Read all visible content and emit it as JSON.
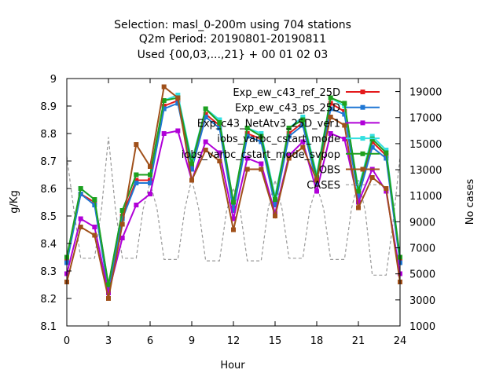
{
  "chart_data": {
    "type": "line",
    "title_lines": [
      "Selection: masl_0-200m using   704 stations",
      "Q2m   Period: 20190801-20190811",
      "Used {00,03,...,21} + 00 01 02 03"
    ],
    "xlabel": "Hour",
    "ylabel": "g/Kg",
    "y2label": "No cases",
    "xlim": [
      0,
      24
    ],
    "ylim": [
      8.1,
      9.0
    ],
    "y2lim": [
      1000,
      20000
    ],
    "xticks": [
      "0",
      "3",
      "6",
      "9",
      "12",
      "15",
      "18",
      "21",
      "24"
    ],
    "yticks": [
      "8.1",
      "8.2",
      "8.3",
      "8.4",
      "8.5",
      "8.6",
      "8.7",
      "8.8",
      "8.9",
      "9"
    ],
    "y2ticks": [
      "1000",
      "3000",
      "5000",
      "7000",
      "9000",
      "11000",
      "13000",
      "15000",
      "17000",
      "19000"
    ],
    "grid": false,
    "legend_position": "top-right",
    "x": [
      0,
      1,
      2,
      3,
      4,
      5,
      6,
      7,
      8,
      9,
      10,
      11,
      12,
      13,
      14,
      15,
      16,
      17,
      18,
      19,
      20,
      21,
      22,
      23,
      24
    ],
    "series": [
      {
        "name": "Exp_ew_c43_ref_25D",
        "color": "#e41a1c",
        "marker": "square",
        "values": [
          8.34,
          8.58,
          8.55,
          8.23,
          8.5,
          8.63,
          8.63,
          8.9,
          8.92,
          8.68,
          8.87,
          8.83,
          8.53,
          8.8,
          8.78,
          8.55,
          8.8,
          8.84,
          8.63,
          8.91,
          8.88,
          8.58,
          8.77,
          8.72,
          8.34
        ]
      },
      {
        "name": "Exp_ew_c43_ps_25D",
        "color": "#1f77d4",
        "marker": "square",
        "values": [
          8.33,
          8.58,
          8.54,
          8.23,
          8.49,
          8.62,
          8.62,
          8.89,
          8.91,
          8.67,
          8.86,
          8.82,
          8.52,
          8.79,
          8.77,
          8.54,
          8.79,
          8.83,
          8.62,
          8.89,
          8.87,
          8.57,
          8.75,
          8.71,
          8.33
        ]
      },
      {
        "name": "Exp_c43_NetAtv3_25D_ver1",
        "color": "#b000d8",
        "marker": "square",
        "values": [
          8.29,
          8.49,
          8.46,
          8.22,
          8.42,
          8.54,
          8.58,
          8.8,
          8.81,
          8.63,
          8.77,
          8.73,
          8.49,
          8.71,
          8.69,
          8.51,
          8.72,
          8.77,
          8.59,
          8.8,
          8.78,
          8.55,
          8.67,
          8.59,
          8.29
        ]
      },
      {
        "name": "iobs_varbc_cstart_mode",
        "color": "#33e0e0",
        "marker": "square",
        "values": [
          8.35,
          8.6,
          8.56,
          8.25,
          8.52,
          8.65,
          8.65,
          8.92,
          8.94,
          8.7,
          8.89,
          8.85,
          8.55,
          8.82,
          8.8,
          8.57,
          8.82,
          8.86,
          8.65,
          8.93,
          8.9,
          8.6,
          8.79,
          8.74,
          8.35
        ]
      },
      {
        "name": "iobs_varbc_cstart_mode_svpop",
        "color": "#1ea01e",
        "marker": "square",
        "values": [
          8.35,
          8.6,
          8.56,
          8.25,
          8.52,
          8.65,
          8.65,
          8.92,
          8.93,
          8.69,
          8.89,
          8.84,
          8.55,
          8.82,
          8.79,
          8.56,
          8.82,
          8.85,
          8.64,
          8.93,
          8.91,
          8.59,
          8.78,
          8.73,
          8.35
        ]
      },
      {
        "name": "OBS",
        "color": "#a0501a",
        "marker": "square",
        "values": [
          8.26,
          8.46,
          8.43,
          8.2,
          8.47,
          8.76,
          8.68,
          8.97,
          8.93,
          8.63,
          8.74,
          8.7,
          8.45,
          8.67,
          8.67,
          8.5,
          8.71,
          8.75,
          8.63,
          8.86,
          8.83,
          8.53,
          8.64,
          8.6,
          8.26
        ]
      },
      {
        "name": "CASES",
        "color": "#999999",
        "dashed": true,
        "axis": "y2",
        "x": [
          0,
          0.5,
          1,
          2,
          2.5,
          3,
          3.5,
          4,
          5,
          5.5,
          6,
          6.5,
          7,
          8,
          8.5,
          9,
          9.5,
          10,
          11,
          11.5,
          12,
          12.5,
          13,
          14,
          14.5,
          15,
          15.5,
          16,
          17,
          17.5,
          18,
          18.5,
          19,
          20,
          20.5,
          21,
          21.5,
          22,
          23,
          23.5,
          24
        ],
        "values": [
          14000,
          10000,
          6200,
          6200,
          10000,
          15500,
          10000,
          6200,
          6200,
          10000,
          12000,
          10000,
          6100,
          6100,
          10000,
          12300,
          10000,
          6000,
          6000,
          9800,
          11600,
          9800,
          6000,
          6000,
          10000,
          12200,
          10000,
          6200,
          6200,
          10000,
          11800,
          10000,
          6100,
          6100,
          10000,
          12200,
          9800,
          4900,
          4900,
          9000,
          14000
        ]
      }
    ]
  }
}
